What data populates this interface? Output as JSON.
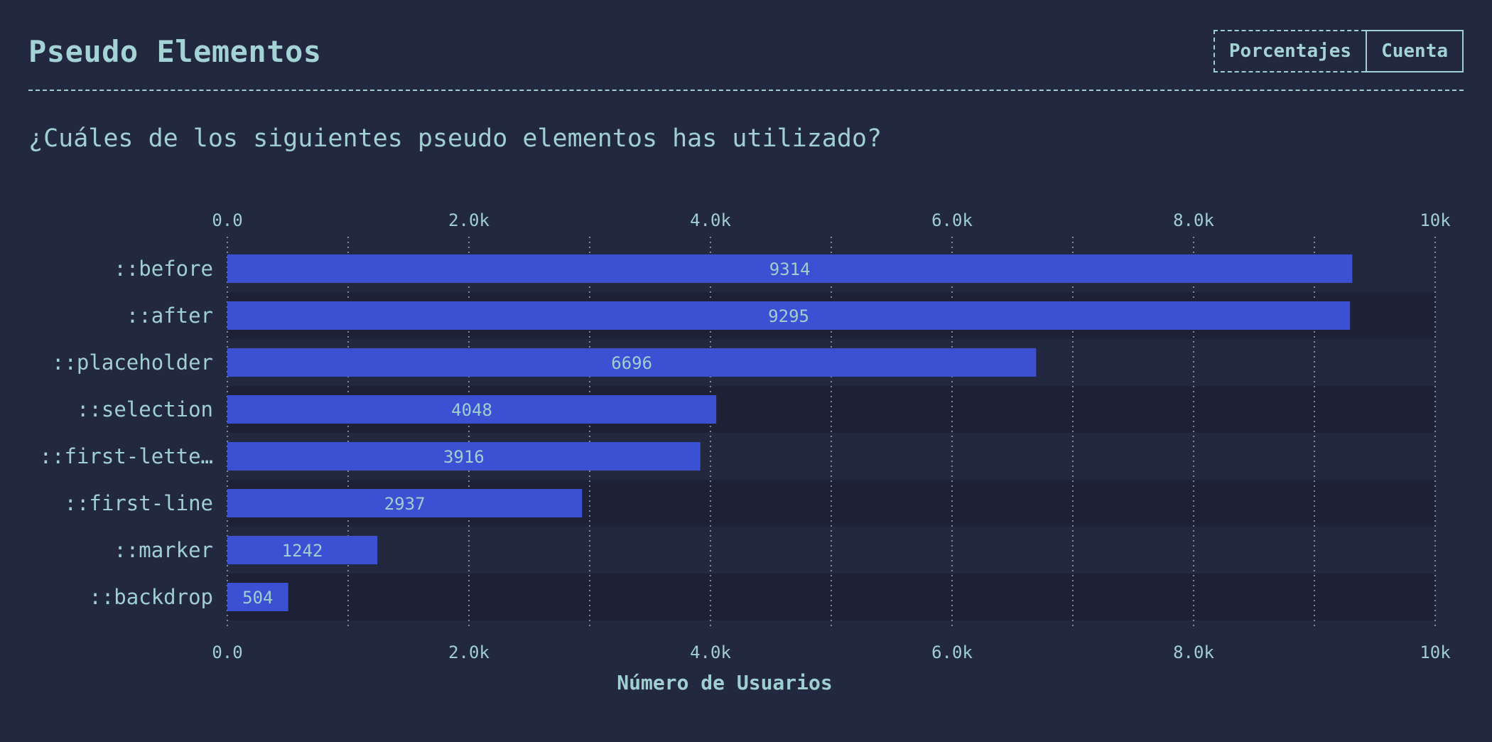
{
  "header": {
    "title": "Pseudo Elementos",
    "toggle_percent": "Porcentajes",
    "toggle_count": "Cuenta"
  },
  "question": "¿Cuáles de los siguientes pseudo elementos has utilizado?",
  "colors": {
    "background": "#232841",
    "bar": "#3b50d3",
    "row_alt": "#1d2136",
    "text": "#9fcfd0",
    "grid": "#8a9bb0"
  },
  "chart_data": {
    "type": "bar",
    "orientation": "horizontal",
    "categories": [
      "::before",
      "::after",
      "::placeholder",
      "::selection",
      "::first-lette…",
      "::first-line",
      "::marker",
      "::backdrop"
    ],
    "values": [
      9314,
      9295,
      6696,
      4048,
      3916,
      2937,
      1242,
      504
    ],
    "xlabel": "Número de Usuarios",
    "xlim": [
      0,
      10000
    ],
    "tick_labels": [
      "0.0",
      "2.0k",
      "4.0k",
      "6.0k",
      "8.0k",
      "10k"
    ],
    "tick_values": [
      0,
      2000,
      4000,
      6000,
      8000,
      10000
    ],
    "minor_grid_values": [
      1000,
      3000,
      5000,
      7000,
      9000
    ],
    "grid": true,
    "axis_position": "top and bottom"
  }
}
